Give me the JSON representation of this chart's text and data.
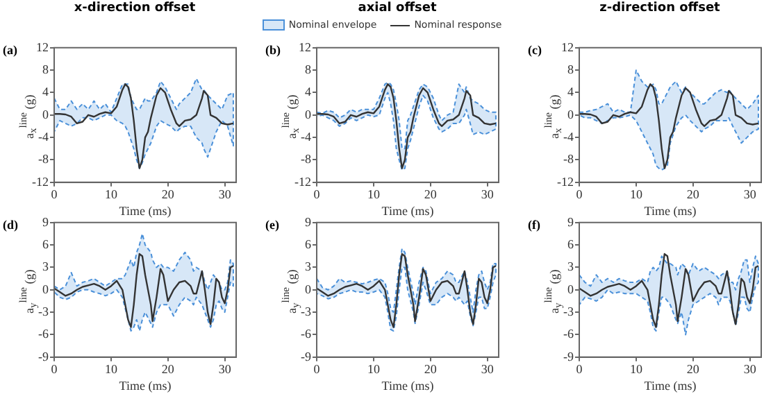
{
  "chart_data": [
    {
      "type": "line",
      "title": "x-direction offset",
      "ylabel": "a$_{x}$$^{line}$ (g)",
      "xlabel": "Time (ms)",
      "annotations": [
        "(a)"
      ],
      "xlim": [
        0,
        32
      ],
      "xticks": [
        0,
        10,
        20,
        30
      ],
      "ylim": [
        -12,
        12
      ],
      "yticks": [
        -12,
        -8,
        -4,
        0,
        4,
        8,
        12
      ],
      "x": [
        0,
        1,
        2,
        3,
        4,
        5,
        6,
        7,
        8,
        9,
        10,
        11,
        12,
        12.5,
        13,
        13.5,
        14,
        14.5,
        15,
        15.5,
        16,
        16.5,
        17,
        18,
        18.7,
        19.5,
        20.5,
        21.5,
        22,
        23,
        24,
        25,
        26,
        26.3,
        27,
        27.5,
        28.5,
        29.5,
        30.5,
        31.5
      ],
      "series": [
        {
          "color": "#333333",
          "values": [
            0.2,
            0.2,
            0.1,
            -0.3,
            -1.5,
            -1.2,
            0,
            -0.3,
            0.2,
            0.5,
            0.3,
            1.5,
            4.5,
            5.5,
            5,
            3,
            -1,
            -6,
            -9.5,
            -8,
            -4,
            -3,
            -0.5,
            3.5,
            4.8,
            4,
            1,
            -1.5,
            -2,
            -1,
            -0.8,
            0,
            3,
            4.3,
            3.5,
            0,
            -0.5,
            -1.5,
            -1.7,
            -1.5
          ],
          "upper": [
            3,
            1,
            1,
            2.5,
            1,
            2,
            1,
            2.5,
            1,
            2,
            0.5,
            3,
            5.5,
            5.5,
            5.5,
            3,
            2,
            1,
            1,
            2,
            3,
            2.5,
            2.5,
            4,
            6,
            5,
            3,
            1,
            2,
            3,
            4,
            6.5,
            4.5,
            4.5,
            3.5,
            3,
            2,
            1,
            3.5,
            4
          ],
          "lower": [
            -3,
            -1,
            -1.5,
            -2,
            -1.5,
            -0.5,
            -0.5,
            -1,
            -0.5,
            0,
            0,
            -1,
            -1.5,
            -2,
            -3,
            -4.5,
            -6,
            -8,
            -9.5,
            -8.5,
            -7,
            -6,
            -5,
            -2,
            -1,
            -1.5,
            -2,
            -3,
            -2.5,
            -2,
            -2,
            -4,
            -5,
            -6,
            -7.5,
            -6,
            -3,
            -1,
            -2,
            -5.5
          ]
        }
      ]
    },
    {
      "type": "line",
      "title": "axial offset",
      "ylabel": "a$_{x}$$^{line}$ (g)",
      "xlabel": "Time (ms)",
      "annotations": [
        "(b)",
        "Nominal envelope"
      ],
      "legend": "top",
      "xlim": [
        0,
        32
      ],
      "xticks": [
        0,
        10,
        20,
        30
      ],
      "ylim": [
        -12,
        12
      ],
      "yticks": [
        -12,
        -8,
        -4,
        0,
        4,
        8,
        12
      ],
      "x": [
        0,
        1,
        2,
        3,
        4,
        5,
        6,
        7,
        8,
        9,
        10,
        11,
        12,
        12.5,
        13,
        13.5,
        14,
        14.5,
        15,
        15.5,
        16,
        16.5,
        17,
        18,
        18.7,
        19.5,
        20.5,
        21.5,
        22,
        23,
        24,
        25,
        26,
        26.3,
        27,
        27.5,
        28.5,
        29.5,
        30.5,
        31.5
      ],
      "series": [
        {
          "name": "Nominal response",
          "color": "#333333",
          "values": [
            0.2,
            0.2,
            0.1,
            -0.3,
            -1.5,
            -1.2,
            0,
            -0.3,
            0.2,
            0.5,
            0.3,
            1.5,
            4.5,
            5.5,
            5,
            3,
            -1,
            -6,
            -9.5,
            -8,
            -4,
            -3,
            -0.5,
            3.5,
            4.8,
            4,
            1,
            -1.5,
            -2,
            -1,
            -0.8,
            0,
            3,
            4.3,
            3.5,
            0,
            -0.5,
            -1.5,
            -1.7,
            -1.5
          ],
          "upper": [
            0.5,
            0.3,
            0.8,
            0.5,
            -0.5,
            0,
            1,
            0.5,
            1,
            1,
            1,
            3,
            5.5,
            5.8,
            5.5,
            4.5,
            2,
            -1,
            -6,
            -6,
            -1,
            0,
            1.5,
            4.5,
            5.5,
            5,
            3,
            0,
            -1,
            0,
            0.5,
            5.5,
            4,
            5,
            3,
            2.5,
            2,
            1,
            0.5,
            0.5
          ],
          "lower": [
            -0.3,
            0,
            -0.5,
            -1,
            -2,
            -1.5,
            -0.5,
            -1,
            -0.5,
            0,
            -0.3,
            0,
            3,
            4,
            2,
            -1,
            -6,
            -8,
            -9.8,
            -9.5,
            -6,
            -4.5,
            -2.5,
            1.5,
            3.5,
            2.5,
            -0.5,
            -2.5,
            -3,
            -2.5,
            -1.5,
            -1.5,
            0,
            1,
            -1.5,
            -3.5,
            -3,
            -3.5,
            -3,
            -2.5
          ]
        }
      ]
    },
    {
      "type": "line",
      "title": "z-direction offset",
      "ylabel": "a$_{x}$$^{line}$ (g)",
      "xlabel": "Time (ms)",
      "annotations": [
        "(c)"
      ],
      "xlim": [
        0,
        32
      ],
      "xticks": [
        0,
        10,
        20,
        30
      ],
      "ylim": [
        -12,
        12
      ],
      "yticks": [
        -12,
        -8,
        -4,
        0,
        4,
        8,
        12
      ],
      "x": [
        0,
        1,
        2,
        3,
        4,
        5,
        6,
        7,
        8,
        9,
        10,
        11,
        12,
        12.5,
        13,
        13.5,
        14,
        14.5,
        15,
        15.5,
        16,
        16.5,
        17,
        18,
        18.7,
        19.5,
        20.5,
        21.5,
        22,
        23,
        24,
        25,
        26,
        26.3,
        27,
        27.5,
        28.5,
        29.5,
        30.5,
        31.5
      ],
      "series": [
        {
          "color": "#333333",
          "values": [
            0.2,
            0.2,
            0.1,
            -0.3,
            -1.5,
            -1.2,
            0,
            -0.3,
            0.2,
            0.5,
            0.3,
            1.5,
            4.5,
            5.5,
            5,
            3,
            -1,
            -6,
            -9.5,
            -8,
            -4,
            -3,
            -0.5,
            3.5,
            4.8,
            4,
            1,
            -1.5,
            -2,
            -1,
            -0.8,
            0,
            3,
            4.3,
            3.5,
            0,
            -0.5,
            -1.5,
            -1.7,
            -1.5
          ],
          "upper": [
            0.5,
            0.5,
            0.8,
            1,
            1.5,
            2,
            0.5,
            1,
            0.5,
            0.5,
            8,
            6,
            5,
            5,
            5.5,
            4.5,
            2,
            2,
            3,
            4,
            5,
            5.5,
            6,
            4,
            5,
            4,
            3,
            2,
            2,
            3,
            4,
            4.5,
            4,
            4.5,
            3.5,
            3,
            2,
            1,
            2,
            3.5
          ],
          "lower": [
            0,
            -0.5,
            -0.5,
            -1,
            -1.5,
            -1,
            -0.5,
            -0.5,
            -0.3,
            0,
            -1,
            -3,
            -5,
            -6,
            -7,
            -9,
            -9.5,
            -9.8,
            -9.5,
            -9,
            -5,
            -3.5,
            -2,
            -0.5,
            0,
            -1,
            -2,
            -3,
            -2.5,
            -2,
            -1,
            -1,
            -1,
            -0.5,
            -2,
            -3,
            -5,
            -4,
            -3,
            -2.5
          ]
        }
      ]
    },
    {
      "type": "line",
      "ylabel": "a$_{y}$$^{line}$ (g)",
      "xlabel": "Time (ms)",
      "annotations": [
        "(d)"
      ],
      "xlim": [
        0,
        32
      ],
      "xticks": [
        0,
        10,
        20,
        30
      ],
      "ylim": [
        -9,
        9
      ],
      "yticks": [
        -9,
        -6,
        -3,
        0,
        3,
        6,
        9
      ],
      "x": [
        0,
        1,
        2,
        3,
        4,
        5,
        6,
        7,
        8,
        9,
        10,
        11,
        12,
        12.5,
        13,
        13.5,
        14,
        14.5,
        15,
        15.5,
        16,
        17,
        17.3,
        18,
        18.7,
        19.2,
        20,
        21,
        22,
        23,
        24,
        24.5,
        25,
        26,
        26.5,
        27,
        27.5,
        28,
        28.5,
        29,
        29.5,
        30,
        30.5,
        31,
        31.5
      ],
      "series": [
        {
          "color": "#333333",
          "values": [
            0.2,
            -0.3,
            -0.8,
            -0.5,
            0,
            0.4,
            0.6,
            0.8,
            0.5,
            0,
            0.5,
            1.2,
            0,
            -2,
            -4,
            -5,
            -2,
            2,
            4.8,
            4.5,
            2,
            -2,
            -4.2,
            -1,
            2.8,
            2,
            -1.5,
            0,
            1,
            1.2,
            0.5,
            -0.5,
            -0.5,
            2.5,
            0,
            -3,
            -4.6,
            -2,
            1.5,
            1,
            -1,
            -1.8,
            0,
            3,
            3.2
          ],
          "upper": [
            0.5,
            0,
            0.5,
            2.3,
            0.5,
            1,
            1.2,
            1.5,
            1,
            0.5,
            1,
            1.5,
            1.5,
            2,
            3,
            4,
            3,
            5,
            6,
            7.5,
            6,
            5,
            4,
            3,
            3.5,
            3,
            3,
            2.5,
            4,
            5,
            4,
            2.5,
            3,
            2.5,
            1,
            0,
            1,
            2,
            1.5,
            1,
            0,
            0,
            1,
            4,
            3.5
          ],
          "lower": [
            -0.3,
            -1,
            -1.3,
            -1,
            -0.3,
            0,
            0,
            -0.3,
            -0.5,
            -0.8,
            -0.5,
            0,
            -1,
            -2.5,
            -4,
            -5.5,
            -5,
            -4,
            -5.5,
            -4,
            -3,
            -4.5,
            -5,
            -3,
            -2,
            -2,
            -2,
            -3.5,
            -2,
            -1,
            -1.5,
            -2,
            -1,
            -2,
            -3,
            -4,
            -5,
            -4,
            -2,
            -1.5,
            -2.5,
            -3,
            -1,
            1,
            0.5
          ]
        }
      ]
    },
    {
      "type": "line",
      "ylabel": "a$_{y}$$^{line}$ (g)",
      "xlabel": "Time (ms)",
      "annotations": [
        "(e)"
      ],
      "xlim": [
        0,
        32
      ],
      "xticks": [
        0,
        10,
        20,
        30
      ],
      "ylim": [
        -9,
        9
      ],
      "yticks": [
        -9,
        -6,
        -3,
        0,
        3,
        6,
        9
      ],
      "x": [
        0,
        1,
        2,
        3,
        4,
        5,
        6,
        7,
        8,
        9,
        10,
        11,
        12,
        12.5,
        13,
        13.5,
        14,
        14.5,
        15,
        15.5,
        16,
        17,
        17.3,
        18,
        18.7,
        19.2,
        20,
        21,
        22,
        23,
        24,
        24.5,
        25,
        26,
        26.5,
        27,
        27.5,
        28,
        28.5,
        29,
        29.5,
        30,
        30.5,
        31,
        31.5
      ],
      "series": [
        {
          "color": "#333333",
          "values": [
            0.2,
            -0.3,
            -0.8,
            -0.5,
            0,
            0.4,
            0.6,
            0.8,
            0.5,
            0,
            0.5,
            1.2,
            0,
            -2,
            -4,
            -5,
            -2,
            2,
            4.8,
            4.5,
            2,
            -2,
            -4.2,
            -1,
            2.8,
            2,
            -1.5,
            0,
            1,
            1.2,
            0.5,
            -0.5,
            -0.5,
            2.5,
            0,
            -3,
            -4.6,
            -2,
            1.5,
            1,
            -1,
            -1.8,
            0,
            3,
            3.2
          ],
          "upper": [
            1.5,
            0.3,
            0,
            0.5,
            1.5,
            1,
            1.2,
            1,
            0.8,
            1,
            1.3,
            1.5,
            1,
            -0.5,
            -2.5,
            -3,
            0,
            3,
            5.5,
            5,
            3,
            -0.5,
            -2,
            1,
            3,
            2.5,
            -0.5,
            1,
            1.5,
            2.5,
            2,
            1,
            1,
            2.5,
            1,
            -1,
            -3,
            0,
            2,
            2.5,
            1,
            0,
            1,
            3.5,
            3.5
          ],
          "lower": [
            -0.5,
            -0.8,
            -1.2,
            -1,
            -0.5,
            -0.3,
            0,
            -0.3,
            -0.3,
            -0.5,
            -0.3,
            0,
            -1,
            -3,
            -5.3,
            -5.5,
            -3.5,
            0,
            3,
            3,
            0,
            -3,
            -4.5,
            -2,
            1,
            0,
            -2,
            -2,
            -1,
            -0.5,
            -1,
            -1.5,
            -1,
            -2,
            -1.5,
            -3.5,
            -4.8,
            -3,
            -1,
            -1,
            -2.5,
            -2.5,
            -1,
            1,
            2
          ]
        }
      ]
    },
    {
      "type": "line",
      "ylabel": "a$_{y}$$^{line}$ (g)",
      "xlabel": "Time (ms)",
      "annotations": [
        "(f)"
      ],
      "xlim": [
        0,
        32
      ],
      "xticks": [
        0,
        10,
        20,
        30
      ],
      "ylim": [
        -9,
        9
      ],
      "yticks": [
        -9,
        -6,
        -3,
        0,
        3,
        6,
        9
      ],
      "x": [
        0,
        1,
        2,
        3,
        4,
        5,
        6,
        7,
        8,
        9,
        10,
        11,
        12,
        12.5,
        13,
        13.5,
        14,
        14.5,
        15,
        15.5,
        16,
        17,
        17.3,
        18,
        18.7,
        19.2,
        20,
        21,
        22,
        23,
        24,
        24.5,
        25,
        26,
        26.5,
        27,
        27.5,
        28,
        28.5,
        29,
        29.5,
        30,
        30.5,
        31,
        31.5
      ],
      "series": [
        {
          "color": "#333333",
          "values": [
            0.2,
            -0.3,
            -0.8,
            -0.5,
            0,
            0.4,
            0.6,
            0.8,
            0.5,
            0,
            0.5,
            1.2,
            0,
            -2,
            -4,
            -5,
            -2,
            2,
            4.8,
            4.5,
            2,
            -2,
            -4.2,
            -1,
            2.8,
            2,
            -1.5,
            0,
            1,
            1.2,
            0.5,
            -0.5,
            -0.5,
            2.5,
            0,
            -3,
            -4.6,
            -2,
            1.5,
            1,
            -1,
            -1.8,
            0,
            3,
            3.2
          ],
          "upper": [
            2,
            1,
            0.5,
            2,
            1,
            1.5,
            1,
            1.5,
            1.2,
            1,
            1,
            1.5,
            1,
            2.5,
            3,
            2.5,
            3,
            4.5,
            4,
            3.5,
            3.5,
            3,
            2,
            3.5,
            3,
            2,
            3.5,
            2.5,
            3,
            2.5,
            2,
            1.5,
            2,
            2.5,
            1,
            1,
            0,
            1.5,
            2.5,
            4,
            4,
            1,
            3,
            4.5,
            3.5
          ],
          "lower": [
            -2,
            -1,
            -1.2,
            -1.5,
            -1,
            0,
            -0.5,
            -0.3,
            -0.5,
            -0.5,
            -0.5,
            -1,
            -1.5,
            -3,
            -5,
            -5.5,
            -3,
            -1,
            -1,
            -1.5,
            -2,
            -4,
            -4.5,
            -3,
            -6,
            -4,
            -2,
            -1.5,
            -1,
            -0.5,
            -1,
            -2,
            -1,
            -1,
            -1.5,
            -3,
            -4.8,
            -3,
            -1,
            -1,
            -2.5,
            -3,
            -1,
            0.5,
            1
          ]
        }
      ]
    }
  ]
}
